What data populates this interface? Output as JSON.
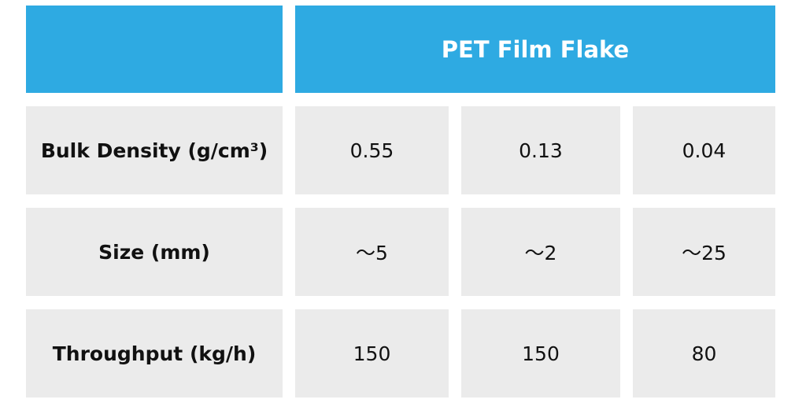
{
  "table": {
    "header": "PET Film Flake",
    "rows": [
      [
        "Bulk Density (g/cm³)",
        "0.55",
        "0.13",
        "0.04"
      ],
      [
        "Size (mm)",
        "～5",
        "～2",
        "～25"
      ],
      [
        "Throughput (kg/h)",
        "150",
        "150",
        "80"
      ]
    ]
  }
}
